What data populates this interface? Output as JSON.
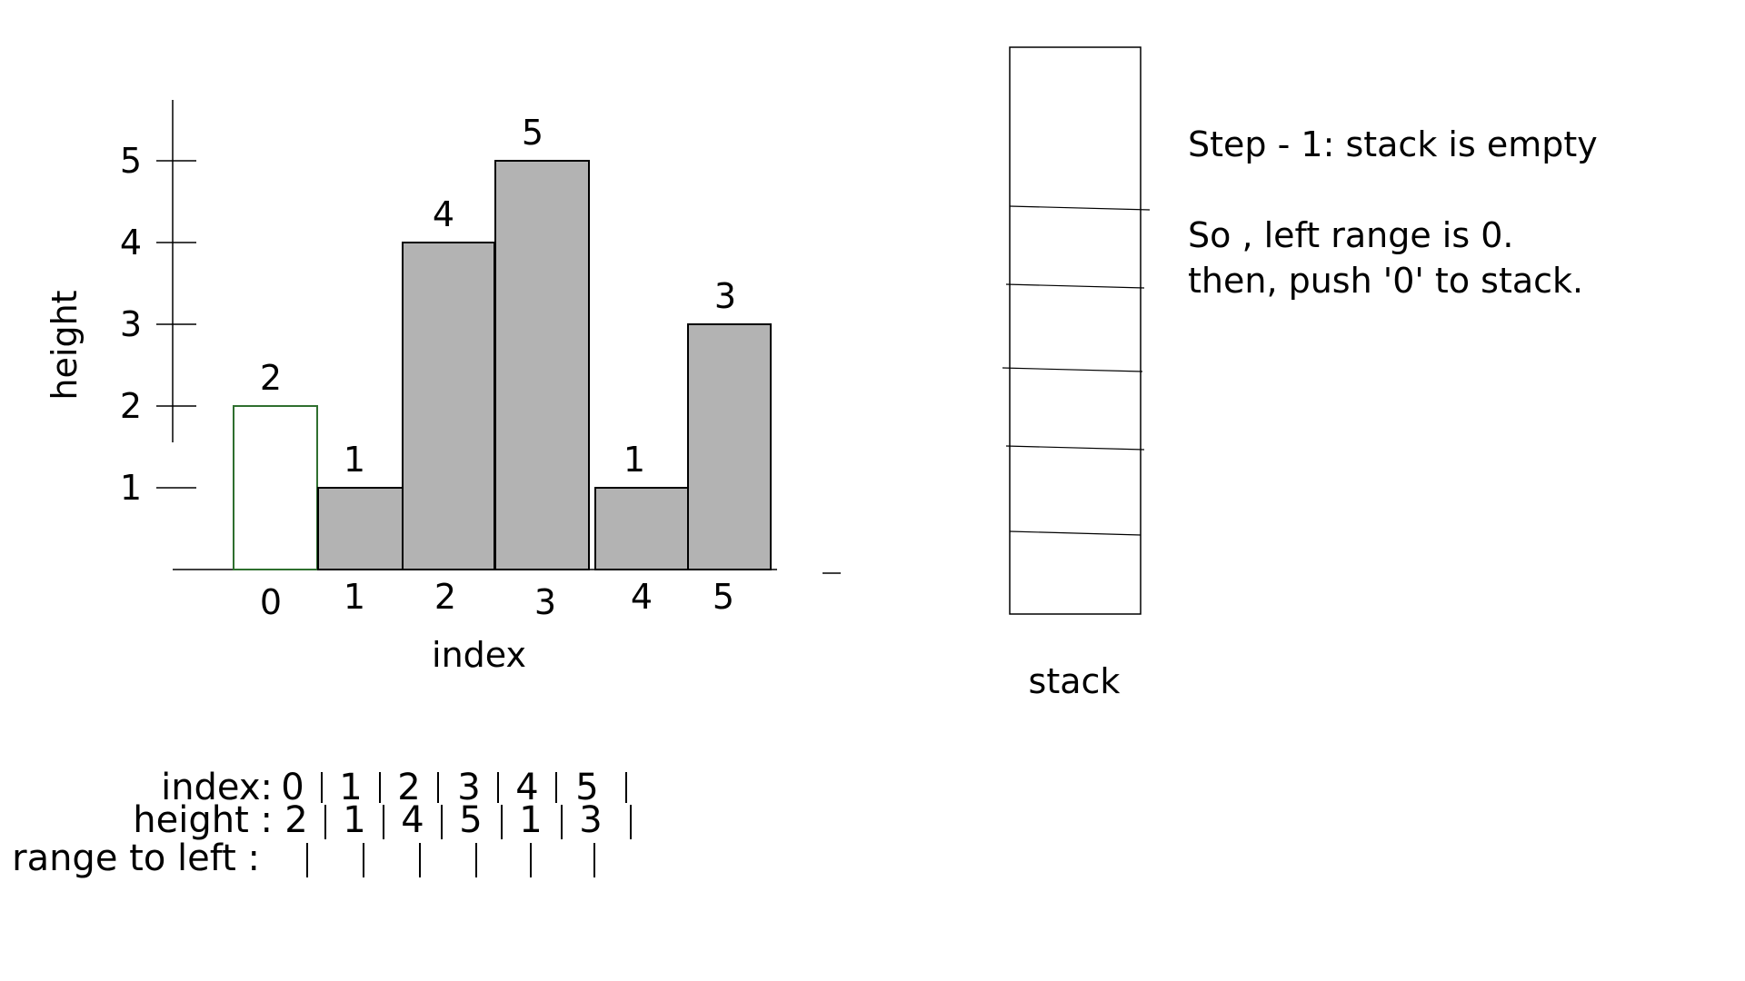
{
  "chart_data": {
    "type": "bar",
    "categories": [
      "0",
      "1",
      "2",
      "3",
      "4",
      "5"
    ],
    "values": [
      2,
      1,
      4,
      5,
      1,
      3
    ],
    "highlighted_index": 0,
    "xlabel": "index",
    "ylabel": "height",
    "yticks": [
      1,
      2,
      3,
      4,
      5
    ],
    "ylim": [
      0,
      5
    ],
    "grid": false,
    "colors": {
      "bar": "#b3b3b3",
      "highlight": "#ffffff"
    }
  },
  "stack": {
    "label": "stack",
    "slots": 6,
    "items": []
  },
  "notes": {
    "line1": "Step - 1: stack is empty",
    "line2": "So , left range is 0.",
    "line3": "then, push '0' to stack."
  },
  "table": {
    "index_label": "index:",
    "index_values": [
      "0",
      "1",
      "2",
      "3",
      "4",
      "5"
    ],
    "height_label": "height :",
    "height_values": [
      "2",
      "1",
      "4",
      "5",
      "1",
      "3"
    ],
    "range_label": "range to left :",
    "range_values": [
      "",
      "",
      "",
      "",
      "",
      ""
    ]
  }
}
